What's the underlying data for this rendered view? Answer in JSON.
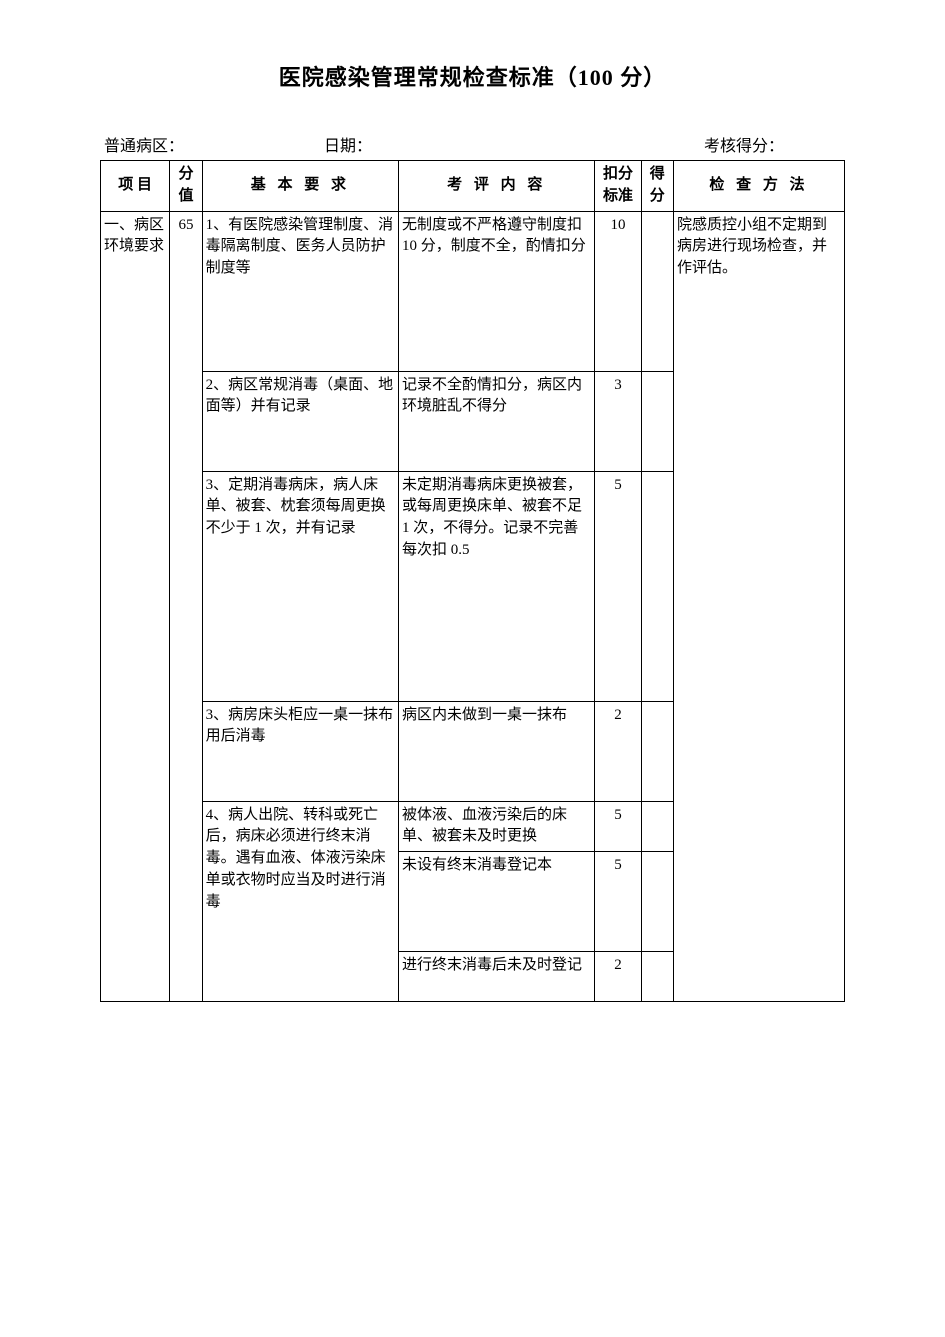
{
  "title": "医院感染管理常规检查标准（100 分）",
  "meta": {
    "ward_label": "普通病区：",
    "date_label": "日期：",
    "score_label": "考核得分："
  },
  "columns": {
    "item": "项    目",
    "points": "分值",
    "requirement": "基 本 要 求",
    "evaluation": "考 评 内 容",
    "deduction": "扣分标准",
    "score": "得分",
    "method": "检 查 方 法"
  },
  "section": {
    "name": "一、病区环境要求",
    "points": "65",
    "method": "院感质控小组不定期到病房进行现场检查，并作评估。"
  },
  "rows": [
    {
      "req": "1、有医院感染管理制度、消毒隔离制度、医务人员防护制度等",
      "eval": "无制度或不严格遵守制度扣 10 分，制度不全，酌情扣分",
      "ded": "10",
      "height": "160"
    },
    {
      "req": "2、病区常规消毒（桌面、地面等）并有记录",
      "eval": "记录不全酌情扣分，病区内环境脏乱不得分",
      "ded": "3",
      "height": "100"
    },
    {
      "req": "3、定期消毒病床，病人床单、被套、枕套须每周更换不少于 1 次，并有记录",
      "eval": "未定期消毒病床更换被套，或每周更换床单、被套不足 1 次，不得分。记录不完善每次扣 0.5",
      "ded": "5",
      "height": "230"
    },
    {
      "req": "3、病房床头柜应一桌一抹布用后消毒",
      "eval": "病区内未做到一桌一抹布",
      "ded": "2",
      "height": "100"
    },
    {
      "req": "4、病人出院、转科或死亡后，病床必须进行终末消毒。遇有血液、体液污染床单或衣物时应当及时进行消毒",
      "eval": "被体液、血液污染后的床单、被套未及时更换",
      "ded": "5",
      "height": "150"
    },
    {
      "req": "",
      "eval": "未设有终末消毒登记本",
      "ded": "5",
      "height": "100"
    },
    {
      "req": "",
      "eval": "进行终末消毒后未及时登记",
      "ded": "2",
      "height": "50"
    }
  ],
  "style": {
    "background_color": "#ffffff",
    "text_color": "#000000",
    "border_color": "#000000",
    "title_fontsize": 22,
    "body_fontsize": 15,
    "meta_fontsize": 16,
    "font_family": "SimSun"
  }
}
